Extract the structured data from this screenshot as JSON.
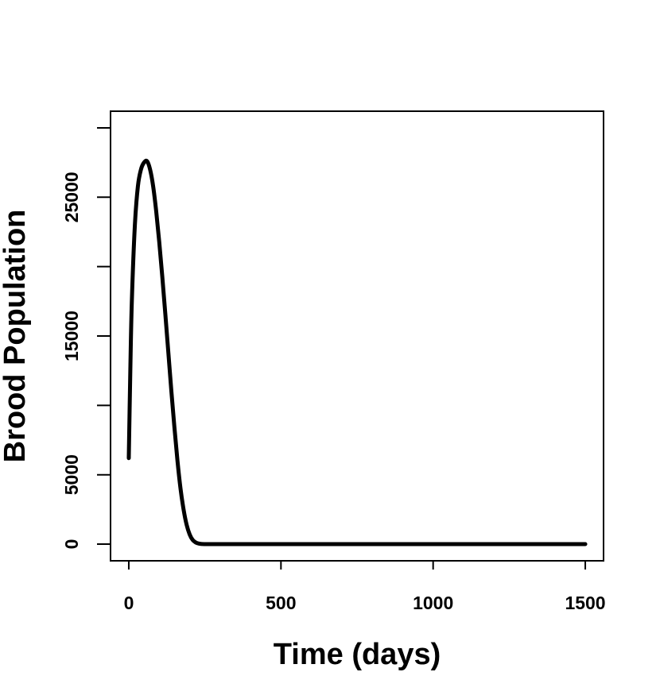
{
  "chart_data": {
    "type": "line",
    "title": "",
    "xlabel": "Time (days)",
    "ylabel": "Brood Population",
    "xlim": [
      -60,
      1560
    ],
    "ylim": [
      -1200,
      31200
    ],
    "x_ticks": [
      0,
      500,
      1000,
      1500
    ],
    "x_tick_labels": [
      "0",
      "500",
      "1000",
      "1500"
    ],
    "y_ticks": [
      0,
      5000,
      10000,
      15000,
      20000,
      25000,
      30000
    ],
    "y_tick_labels": [
      "0",
      "5000",
      "",
      "15000",
      "",
      "25000",
      ""
    ],
    "grid": false,
    "series": [
      {
        "color": "#000000",
        "x": [
          0,
          5,
          10,
          20,
          30,
          40,
          50,
          60,
          70,
          80,
          90,
          100,
          110,
          120,
          130,
          140,
          150,
          160,
          170,
          180,
          190,
          200,
          210,
          220,
          230,
          240,
          260,
          300,
          400,
          600,
          800,
          1000,
          1200,
          1400,
          1500
        ],
        "y": [
          6200,
          12500,
          17500,
          23000,
          25800,
          27000,
          27500,
          27600,
          27000,
          25800,
          24000,
          21800,
          19300,
          16600,
          13800,
          11000,
          8400,
          6000,
          4000,
          2500,
          1400,
          700,
          300,
          120,
          40,
          10,
          0,
          0,
          0,
          0,
          0,
          0,
          0,
          0,
          0
        ]
      }
    ]
  }
}
